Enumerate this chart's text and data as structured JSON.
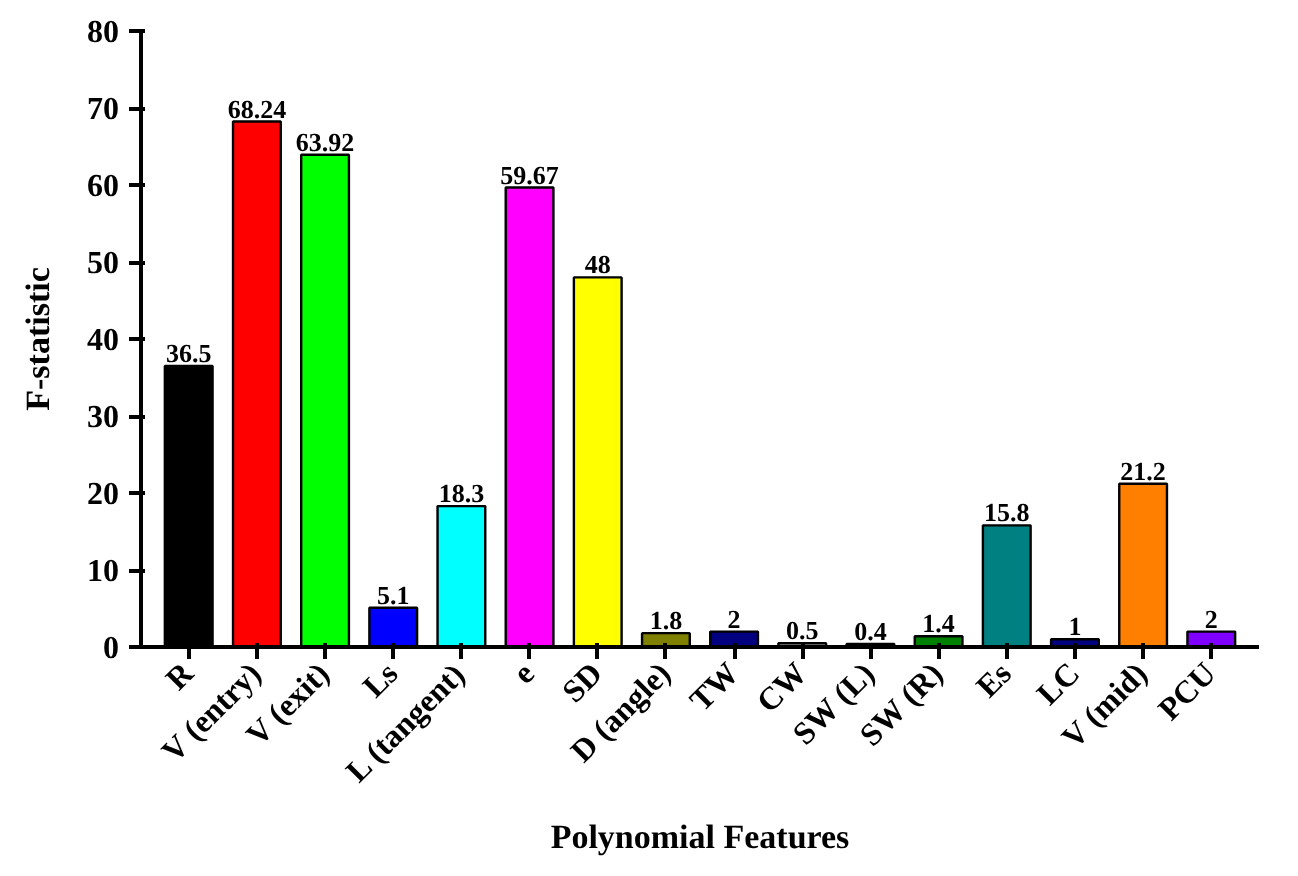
{
  "chart_data": {
    "type": "bar",
    "xlabel": "Polynomial Features",
    "ylabel": "F-statistic",
    "categories": [
      "R",
      "V (entry)",
      "V (exit)",
      "Ls",
      "L (tangent)",
      "e",
      "SD",
      "D (angle)",
      "TW",
      "CW",
      "SW (L)",
      "SW (R)",
      "Es",
      "LC",
      "V (mid)",
      "PCU"
    ],
    "values": [
      36.5,
      68.24,
      63.92,
      5.1,
      18.3,
      59.67,
      48,
      1.8,
      2,
      0.5,
      0.4,
      1.4,
      15.8,
      1,
      21.2,
      2
    ],
    "colors": [
      "#000000",
      "#ff0000",
      "#00ff00",
      "#0000ff",
      "#00ffff",
      "#ff00ff",
      "#ffff00",
      "#808000",
      "#000080",
      "#808080",
      "#800080",
      "#008000",
      "#008080",
      "#000080",
      "#ff8000",
      "#8000ff"
    ],
    "ylim": [
      0,
      80
    ],
    "yticks": [
      0,
      10,
      20,
      30,
      40,
      50,
      60,
      70,
      80
    ],
    "data_labels": true,
    "grid": false
  }
}
